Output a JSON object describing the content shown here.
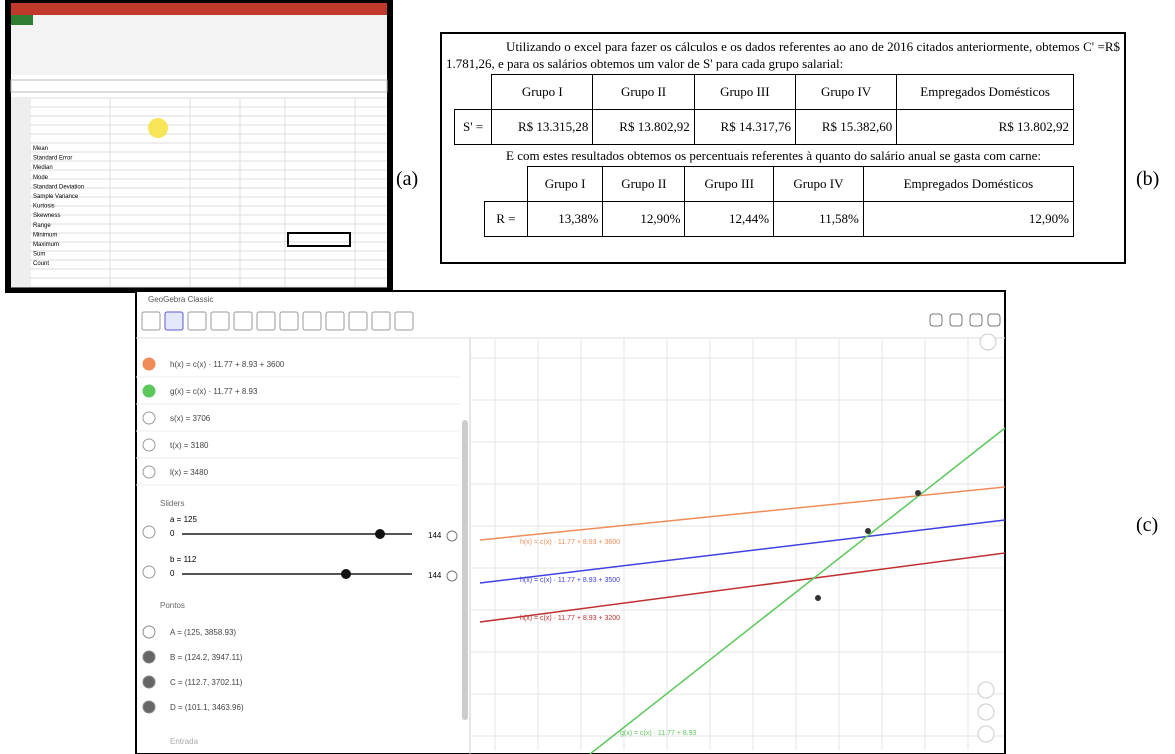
{
  "labels": {
    "a": "(a)",
    "b": "(b)",
    "c": "(c)"
  },
  "excel": {
    "stats": [
      "Mean",
      "Standard Error",
      "Median",
      "Mode",
      "Standard Deviation",
      "Sample Variance",
      "Kurtosis",
      "Skewness",
      "Range",
      "Minimum",
      "Maximum",
      "Sum",
      "Count"
    ]
  },
  "text_b": {
    "intro": "Utilizando o excel para fazer os cálculos e os dados referentes ao ano de 2016 citados anteriormente, obtemos C' =R$ 1.781,26, e para os salários obtemos um valor de S' para cada grupo salarial:",
    "table1": {
      "header": [
        "Grupo I",
        "Grupo II",
        "Grupo III",
        "Grupo IV",
        "Empregados Domésticos"
      ],
      "row_label": "S' =",
      "values": [
        "R$ 13.315,28",
        "R$ 13.802,92",
        "R$ 14.317,76",
        "R$ 15.382,60",
        "R$ 13.802,92"
      ]
    },
    "middle": "E com estes resultados obtemos os percentuais referentes à quanto do salário anual se gasta com carne:",
    "table2": {
      "header": [
        "Grupo I",
        "Grupo II",
        "Grupo III",
        "Grupo IV",
        "Empregados Domésticos"
      ],
      "row_label": "R =",
      "values": [
        "13,38%",
        "12,90%",
        "12,44%",
        "11,58%",
        "12,90%"
      ]
    }
  },
  "geogebra": {
    "title": "GeoGebra Classic",
    "entries": [
      "h(x) = c(x) · 11.77 + 8.93 + 3600",
      "g(x) = c(x) · 11.77 + 8.93",
      "s(x) = 3706",
      "t(x) = 3180",
      "l(x) = 3480"
    ],
    "sliders_title": "Sliders",
    "sliders": [
      {
        "label": "a = 125",
        "min": "0",
        "max": "144"
      },
      {
        "label": "b = 112",
        "min": "0",
        "max": "144"
      }
    ],
    "points_title": "Pontos",
    "points": [
      "A = (125, 3858.93)",
      "B = (124.2, 3947.11)",
      "C = (112.7, 3702.11)",
      "D = (101.1, 3463.96)"
    ],
    "input": "Entrada",
    "line_labels": [
      "h(x) = c(x) · 11.77 + 8.93 + 3600",
      "h(x) = c(x) · 11.77 + 8.93 + 3500",
      "h(x) = c(x) · 11.77 + 8.93 + 3200",
      "g(x) = c(x) · 11.77 + 8.93"
    ]
  }
}
